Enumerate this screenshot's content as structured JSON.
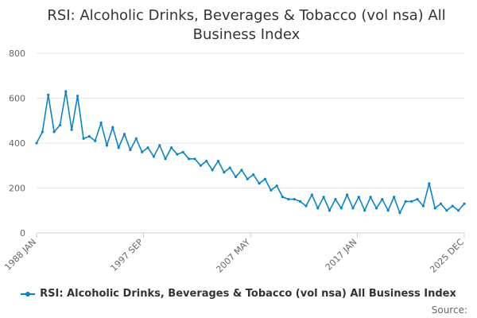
{
  "chart_data": {
    "type": "line",
    "title": "RSI: Alcoholic Drinks, Beverages & Tobacco (vol nsa) All Business Index",
    "xlabel": "",
    "ylabel": "",
    "ylim": [
      0,
      800
    ],
    "yticks": [
      "0",
      "200",
      "400",
      "600",
      "800"
    ],
    "x_tick_labels": [
      "1988 JAN",
      "1997 SEP",
      "2007 MAY",
      "2017 JAN",
      "2025 DEC"
    ],
    "grid": true,
    "legend_position": "bottom",
    "series": [
      {
        "name": "RSI: Alcoholic Drinks, Beverages & Tobacco (vol nsa) All Business Index",
        "color": "#0b84c6",
        "x": [
          "1988 JAN",
          "1988 SEP",
          "1989 JUN",
          "1990 JAN",
          "1990 MAY",
          "1990 DEC",
          "1991 JUN",
          "1991 DEC",
          "1992 JUN",
          "1992 DEC",
          "1993 JUN",
          "1993 DEC",
          "1994 JUN",
          "1994 DEC",
          "1995 JUN",
          "1995 DEC",
          "1996 JUN",
          "1996 DEC",
          "1997 SEP",
          "1998 DEC",
          "1999 JUN",
          "1999 DEC",
          "2000 JUN",
          "2000 DEC",
          "2001 JUN",
          "2001 DEC",
          "2002 JUN",
          "2002 DEC",
          "2003 JUN",
          "2003 DEC",
          "2004 JUN",
          "2004 DEC",
          "2005 JUN",
          "2005 DEC",
          "2006 JUN",
          "2006 DEC",
          "2007 MAY",
          "2007 DEC",
          "2008 JUN",
          "2008 DEC",
          "2009 JUN",
          "2009 DEC",
          "2010 JUN",
          "2010 DEC",
          "2011 JUN",
          "2011 DEC",
          "2012 JUN",
          "2012 DEC",
          "2013 JUN",
          "2013 DEC",
          "2014 JUN",
          "2014 DEC",
          "2015 JUN",
          "2015 DEC",
          "2016 JUN",
          "2016 DEC",
          "2017 JAN",
          "2017 DEC",
          "2018 JUN",
          "2018 DEC",
          "2019 JUN",
          "2019 DEC",
          "2020 JUN",
          "2020 DEC",
          "2021 JUN",
          "2021 DEC",
          "2022 JUN",
          "2022 DEC",
          "2023 JUN",
          "2023 DEC",
          "2024 JUN",
          "2024 DEC",
          "2025 JUN",
          "2025 DEC"
        ],
        "values": [
          400,
          450,
          615,
          450,
          480,
          630,
          460,
          610,
          420,
          430,
          410,
          490,
          390,
          470,
          380,
          440,
          370,
          420,
          360,
          380,
          340,
          390,
          330,
          380,
          350,
          360,
          330,
          330,
          300,
          320,
          280,
          320,
          270,
          290,
          250,
          280,
          240,
          260,
          220,
          240,
          190,
          210,
          160,
          150,
          150,
          140,
          120,
          170,
          110,
          160,
          100,
          150,
          110,
          170,
          110,
          160,
          100,
          160,
          110,
          150,
          100,
          160,
          90,
          140,
          140,
          150,
          120,
          220,
          110,
          130,
          100,
          120,
          100,
          130
        ]
      }
    ]
  },
  "source_label": "Source:"
}
